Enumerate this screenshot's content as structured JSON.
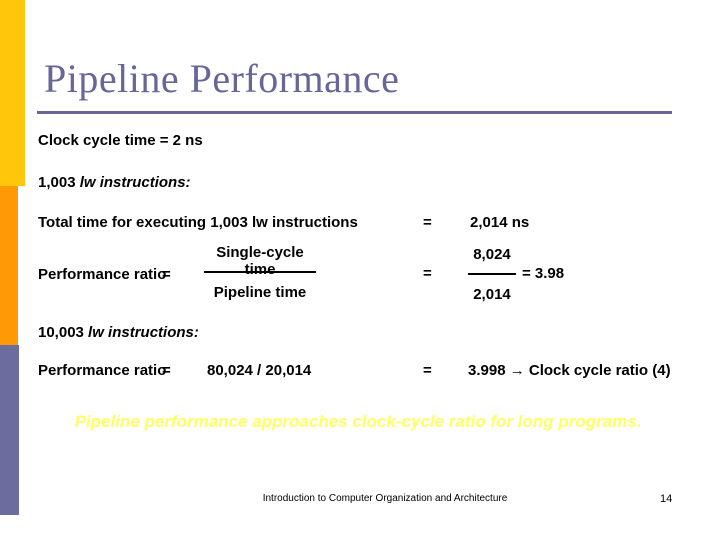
{
  "slide": {
    "title": "Pipeline Performance",
    "footer": "Introduction to Computer Organization and Architecture",
    "page_number": "14"
  },
  "content": {
    "clock_cycle_line": "Clock cycle time = 2 ns",
    "section1_count": "1,003 ",
    "section1_italic": "lw instructions:",
    "total_time_label": "Total time for executing 1,003 lw instructions",
    "equals": "=",
    "total_time_value": "2,014 ns",
    "perf_ratio_label": "Performance ratio",
    "fraction1_numerator": "Single-cycle time",
    "fraction1_denominator": "Pipeline time",
    "fraction2_numerator": "8,024",
    "fraction2_denominator": "2,014",
    "fraction2_result": "=  3.98",
    "section2_count": "10,003 ",
    "section2_italic": "lw instructions:",
    "ratio2_expression": "80,024 / 20,014",
    "ratio2_result": "3.998 → Clock cycle ratio (4)",
    "conclusion": "Pipeline performance approaches clock-cycle ratio for long programs."
  },
  "colors": {
    "accent_gold": "#FFC60A",
    "accent_orange": "#FF9905",
    "accent_slate_blue": "#6A6D9E",
    "title_color": "#666699",
    "conclusion_yellow": "#FFFF64",
    "body_text": "#000000",
    "background": "#FFFFFF"
  }
}
